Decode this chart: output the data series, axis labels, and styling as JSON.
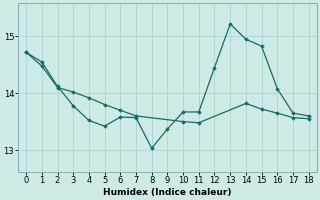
{
  "xlabel": "Humidex (Indice chaleur)",
  "bg_color": "#ceeae7",
  "line_color": "#1a6b5e",
  "grid_color": "#aed4d0",
  "line1_x": [
    0,
    1,
    2,
    3,
    4,
    5,
    6,
    7,
    8,
    9,
    10,
    11,
    12,
    13,
    14,
    15,
    16,
    17,
    18
  ],
  "line1_y": [
    14.72,
    14.55,
    14.12,
    13.78,
    13.52,
    13.42,
    13.58,
    13.57,
    13.03,
    13.37,
    13.67,
    13.67,
    14.45,
    15.22,
    14.95,
    14.83,
    14.08,
    13.65,
    13.6
  ],
  "line2_x": [
    0,
    1,
    2,
    3,
    4,
    5,
    6,
    7,
    10,
    11,
    14,
    15,
    16,
    17,
    18
  ],
  "line2_y": [
    14.72,
    14.48,
    14.1,
    14.02,
    13.92,
    13.8,
    13.7,
    13.6,
    13.5,
    13.48,
    13.82,
    13.72,
    13.65,
    13.57,
    13.55
  ],
  "xlim": [
    -0.5,
    18.5
  ],
  "ylim": [
    12.62,
    15.58
  ],
  "yticks": [
    13,
    14,
    15
  ],
  "xticks": [
    0,
    1,
    2,
    3,
    4,
    5,
    6,
    7,
    8,
    9,
    10,
    11,
    12,
    13,
    14,
    15,
    16,
    17,
    18
  ]
}
